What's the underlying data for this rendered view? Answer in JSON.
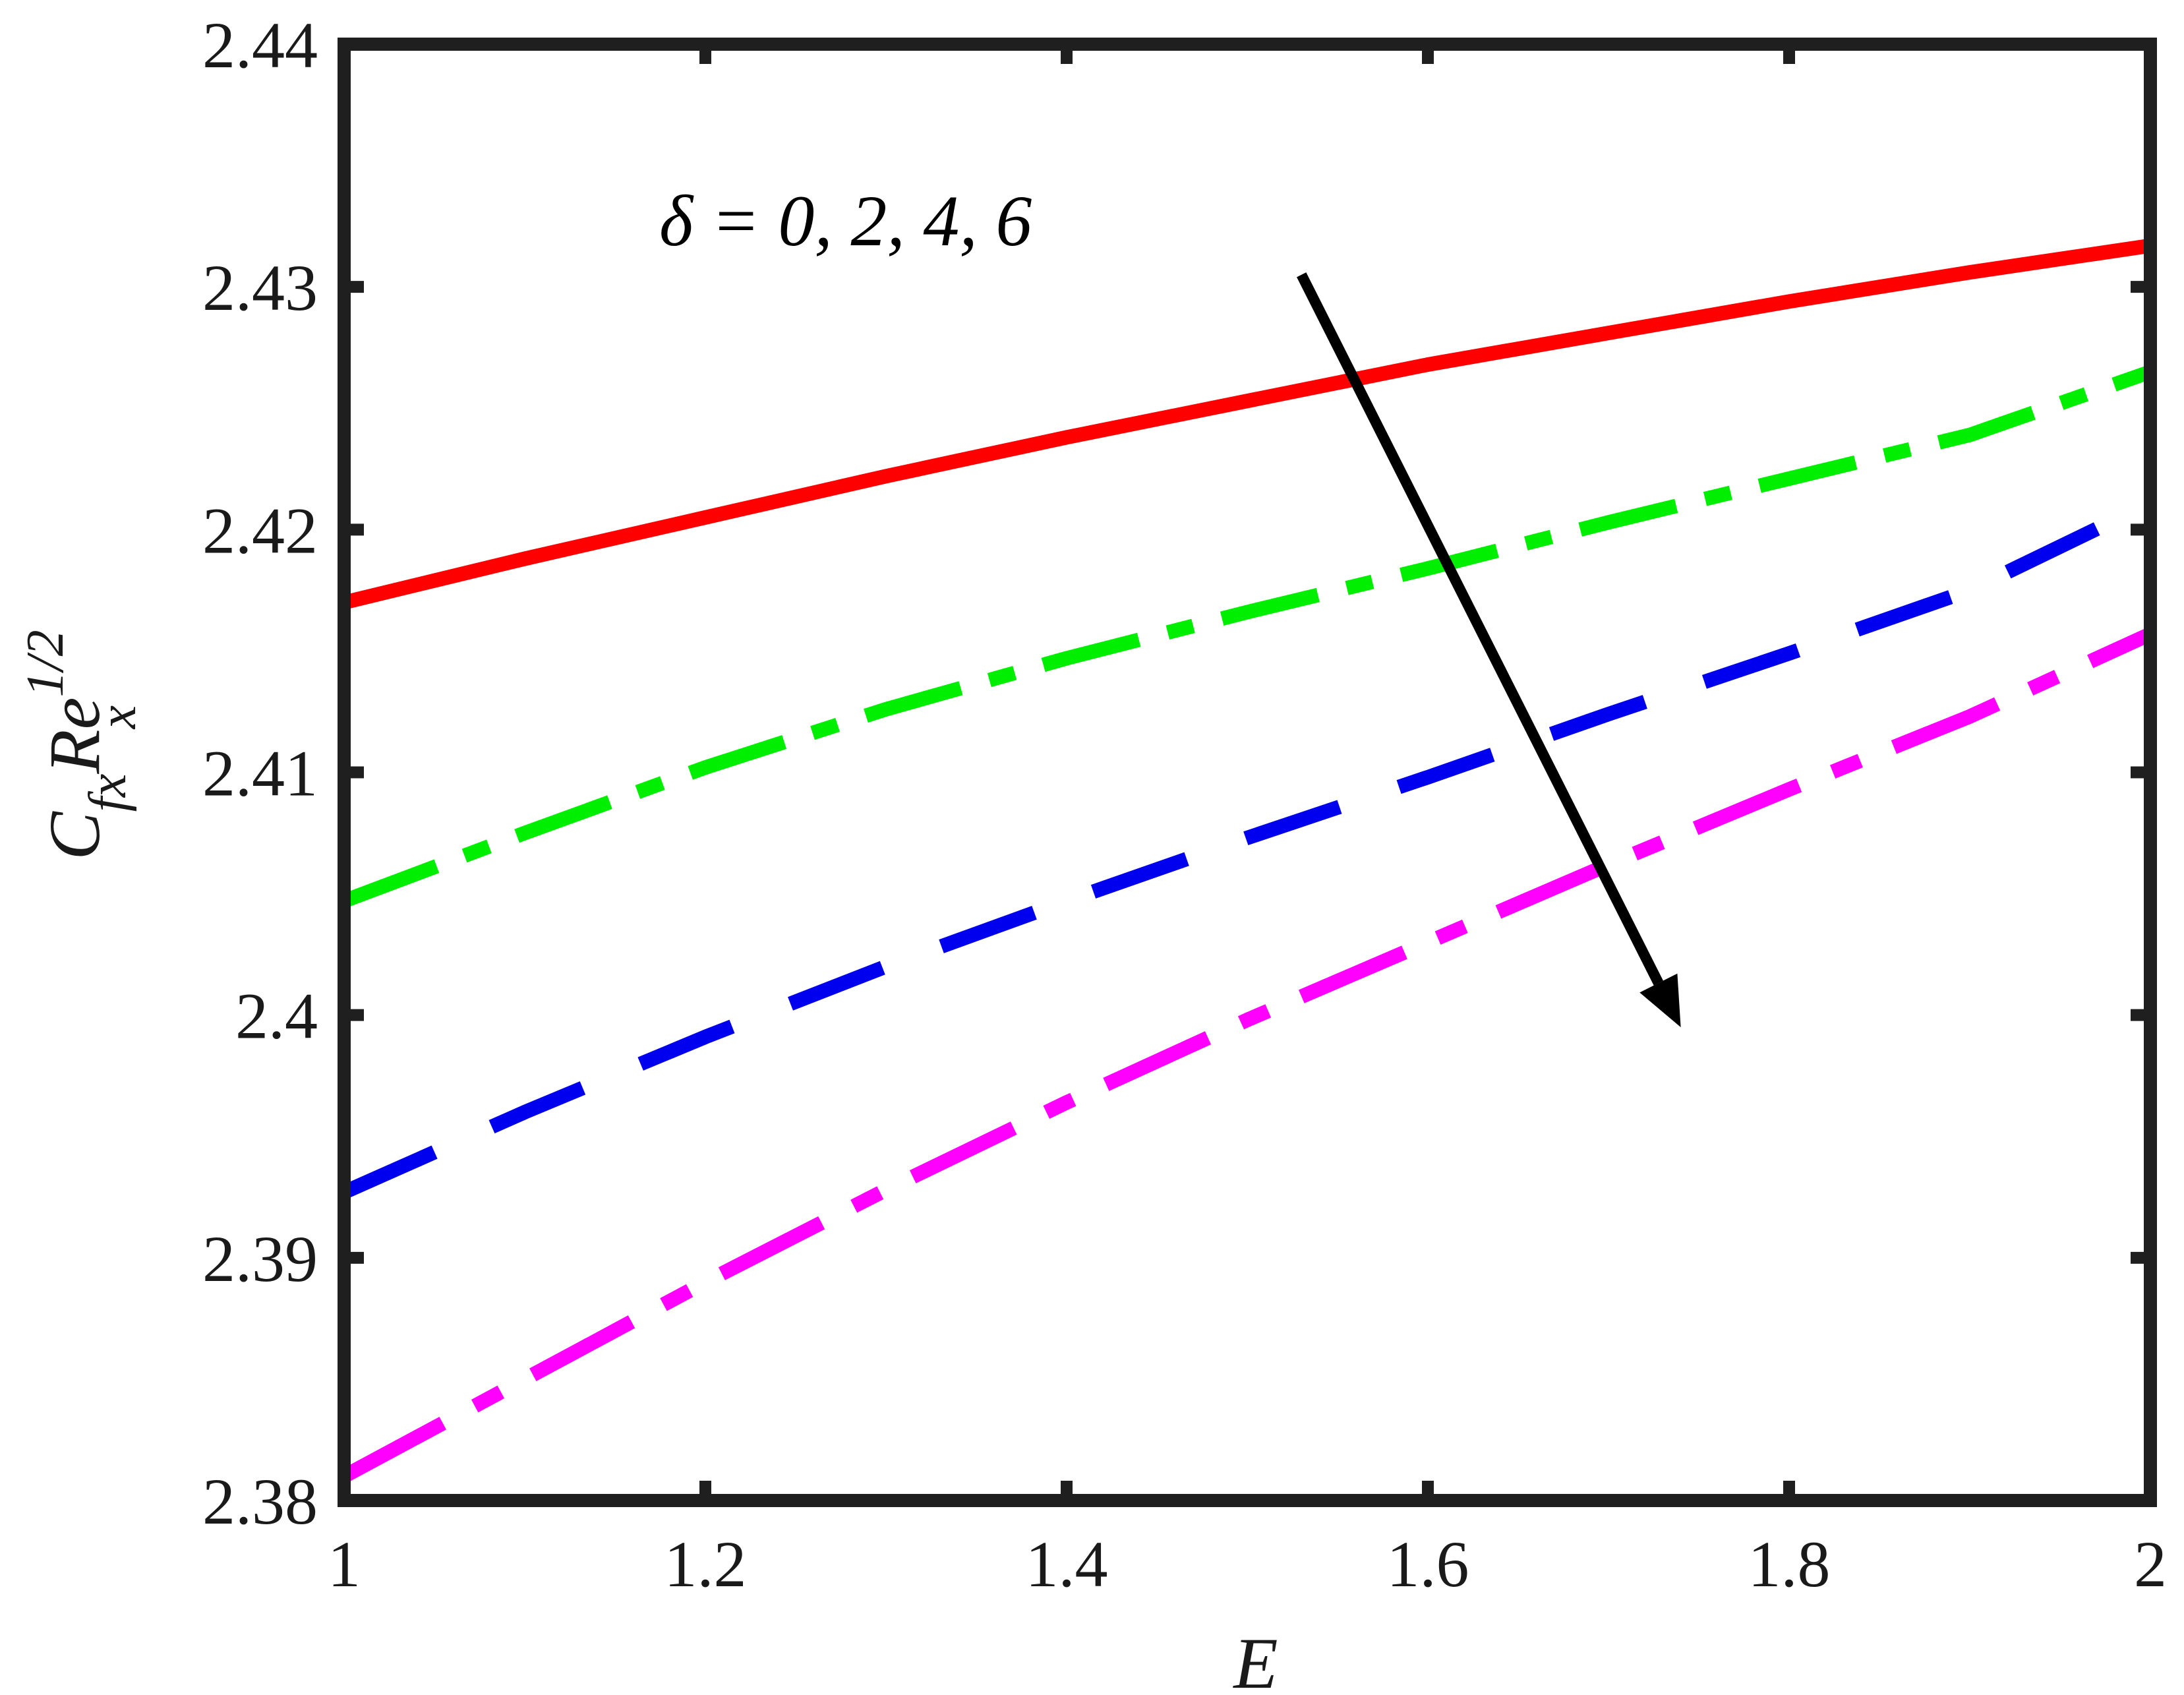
{
  "chart_data": {
    "type": "line",
    "xlabel": "E",
    "ylabel": {
      "base": "C",
      "sub1": "fx",
      "mid": "Re",
      "sup": "1/2",
      "sub2": "x"
    },
    "xlim": [
      1,
      2
    ],
    "ylim": [
      2.38,
      2.44
    ],
    "xticks": [
      1,
      1.2,
      1.4,
      1.6,
      1.8,
      2
    ],
    "xtick_labels": [
      "1",
      "1.2",
      "1.4",
      "1.6",
      "1.8",
      "2"
    ],
    "yticks": [
      2.38,
      2.39,
      2.4,
      2.41,
      2.42,
      2.43,
      2.44
    ],
    "ytick_labels": [
      "2.38",
      "2.39",
      "2.4",
      "2.41",
      "2.42",
      "2.43",
      "2.44"
    ],
    "grid": false,
    "annotation": "δ = 0, 2, 4, 6",
    "arrow": {
      "from": [
        1.53,
        2.4305
      ],
      "to": [
        1.74,
        2.3995
      ]
    },
    "x": [
      1,
      1.1,
      1.2,
      1.3,
      1.4,
      1.5,
      1.6,
      1.7,
      1.8,
      1.9,
      2
    ],
    "series": [
      {
        "values": [
          2.417,
          2.4188,
          2.4205,
          2.4222,
          2.4238,
          2.4253,
          2.4268,
          2.4281,
          2.4294,
          2.4306,
          2.4317
        ],
        "color": "#ff0000",
        "dash": "solid"
      },
      {
        "values": [
          2.4047,
          2.4075,
          2.4102,
          2.4126,
          2.4147,
          2.4166,
          2.4184,
          2.4203,
          2.4221,
          2.4239,
          2.4265
        ],
        "color": "#00ee00",
        "dash": "dashdot"
      },
      {
        "values": [
          2.3927,
          2.396,
          2.3991,
          2.402,
          2.4047,
          2.4073,
          2.4098,
          2.4124,
          2.4149,
          2.4175,
          2.4211
        ],
        "color": "#0000ee",
        "dash": "dashed"
      },
      {
        "values": [
          2.381,
          2.385,
          2.389,
          2.3928,
          2.3964,
          2.3998,
          2.403,
          2.4062,
          2.4093,
          2.4123,
          2.4157
        ],
        "color": "#ff00ff",
        "dash": "dashdot-long"
      }
    ]
  }
}
